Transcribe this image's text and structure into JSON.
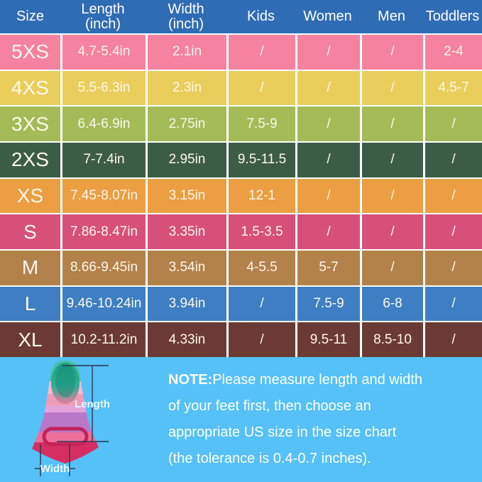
{
  "colors": {
    "header_bg": "#2e6cb3",
    "footer_bg": "#55c1f6",
    "divider": "#ffffff",
    "cell_text": "#fdf8ec",
    "measure_line": "#2a3550"
  },
  "header_display": [
    {
      "line1": "Size",
      "line2": ""
    },
    {
      "line1": "Length",
      "line2": "(inch)"
    },
    {
      "line1": "Width",
      "line2": "(inch)"
    },
    {
      "line1": "Kids",
      "line2": ""
    },
    {
      "line1": "Women",
      "line2": ""
    },
    {
      "line1": "Men",
      "line2": ""
    },
    {
      "line1": "Toddlers",
      "line2": ""
    }
  ],
  "chart_data": {
    "type": "table",
    "title": "Swim fin US size chart",
    "columns": [
      "Size",
      "Length (inch)",
      "Width (inch)",
      "Kids",
      "Women",
      "Men",
      "Toddlers"
    ],
    "rows": [
      [
        "5XS",
        "4.7-5.4in",
        "2.1in",
        "/",
        "/",
        "/",
        "2-4"
      ],
      [
        "4XS",
        "5.5-6.3in",
        "2.3in",
        "/",
        "/",
        "/",
        "4.5-7"
      ],
      [
        "3XS",
        "6.4-6.9in",
        "2.75in",
        "7.5-9",
        "/",
        "/",
        "/"
      ],
      [
        "2XS",
        "7-7.4in",
        "2.95in",
        "9.5-11.5",
        "/",
        "/",
        "/"
      ],
      [
        "XS",
        "7.45-8.07in",
        "3.15in",
        "12-1",
        "/",
        "/",
        "/"
      ],
      [
        "S",
        "7.86-8.47in",
        "3.35in",
        "1.5-3.5",
        "/",
        "/",
        "/"
      ],
      [
        "M",
        "8.66-9.45in",
        "3.54in",
        "4-5.5",
        "5-7",
        "/",
        "/"
      ],
      [
        "L",
        "9.46-10.24in",
        "3.94in",
        "/",
        "7.5-9",
        "6-8",
        "/"
      ],
      [
        "XL",
        "10.2-11.2in",
        "4.33in",
        "/",
        "9.5-11",
        "8.5-10",
        "/"
      ]
    ],
    "row_colors": [
      "#f5829f",
      "#eace5c",
      "#a4bb58",
      "#3c5d45",
      "#eb9e42",
      "#d75079",
      "#b3814a",
      "#3d7fc2",
      "#6c3a34"
    ]
  },
  "footer": {
    "note_bold": "NOTE:",
    "note_lines": [
      "Please measure length and width",
      "of your feet first, then choose an",
      "appropriate US size in the size chart",
      "(the tolerance is 0.4-0.7 inches)."
    ],
    "fin_labels": {
      "length": "Length",
      "width": "Width"
    }
  }
}
